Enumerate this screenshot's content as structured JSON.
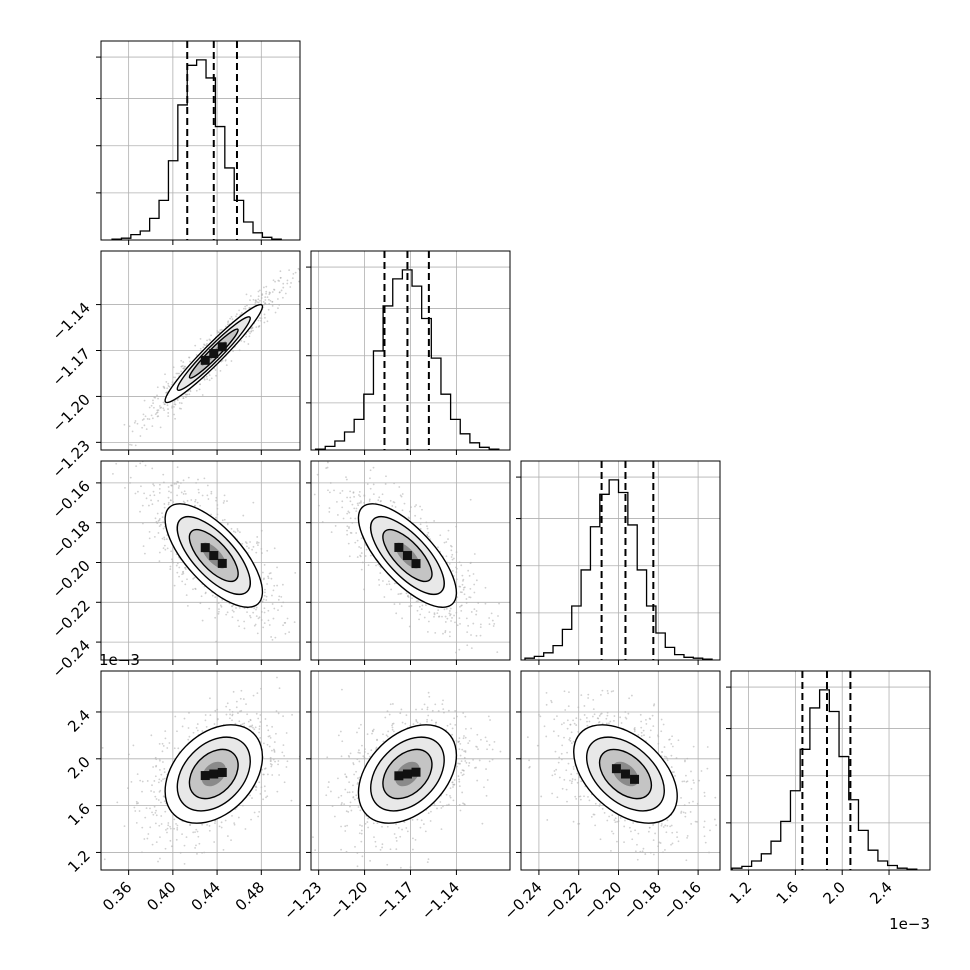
{
  "chart_data": {
    "type": "corner",
    "parameters": 4,
    "offset_labels": {
      "row4_y": "1e−3",
      "col4_x": "1e−3"
    },
    "axes": [
      {
        "range": [
          0.335,
          0.515
        ],
        "ticks": [
          0.36,
          0.4,
          0.44,
          0.48
        ],
        "tick_labels": [
          "0.36",
          "0.40",
          "0.44",
          "0.48"
        ],
        "quantiles": [
          0.413,
          0.437,
          0.458
        ]
      },
      {
        "range": [
          -1.235,
          -1.105
        ],
        "ticks": [
          -1.23,
          -1.2,
          -1.17,
          -1.14
        ],
        "tick_labels": [
          "−1.23",
          "−1.20",
          "−1.17",
          "−1.14"
        ],
        "quantiles": [
          -1.187,
          -1.172,
          -1.158
        ]
      },
      {
        "range": [
          -0.249,
          -0.149
        ],
        "ticks": [
          -0.24,
          -0.22,
          -0.2,
          -0.18,
          -0.16
        ],
        "tick_labels": [
          "−0.24",
          "−0.22",
          "−0.20",
          "−0.18",
          "−0.16"
        ],
        "quantiles": [
          -0.2085,
          -0.1965,
          -0.1825
        ]
      },
      {
        "range": [
          1.05,
          2.75
        ],
        "ticks": [
          1.2,
          1.6,
          2.0,
          2.4
        ],
        "tick_labels": [
          "1.2",
          "1.6",
          "2.0",
          "2.4"
        ],
        "quantiles": [
          1.66,
          1.87,
          2.07
        ]
      }
    ],
    "histograms": [
      {
        "param": 0,
        "bins_lo": 0.345,
        "bin_width": 0.0085,
        "counts": [
          0.005,
          0.01,
          0.03,
          0.05,
          0.12,
          0.22,
          0.44,
          0.75,
          0.97,
          1.0,
          0.9,
          0.63,
          0.4,
          0.22,
          0.1,
          0.04,
          0.015,
          0.005
        ]
      },
      {
        "param": 1,
        "bins_lo": -1.232,
        "bin_width": 0.0063,
        "counts": [
          0.005,
          0.02,
          0.05,
          0.1,
          0.17,
          0.31,
          0.55,
          0.8,
          0.95,
          1.0,
          0.91,
          0.73,
          0.51,
          0.31,
          0.17,
          0.09,
          0.04,
          0.015,
          0.005
        ]
      },
      {
        "param": 2,
        "bins_lo": -0.247,
        "bin_width": 0.0047,
        "counts": [
          0.01,
          0.02,
          0.04,
          0.08,
          0.17,
          0.3,
          0.5,
          0.74,
          0.92,
          1.0,
          0.93,
          0.75,
          0.5,
          0.3,
          0.15,
          0.07,
          0.03,
          0.015,
          0.01,
          0.005
        ]
      },
      {
        "param": 3,
        "bins_lo": 1.06,
        "bin_width": 0.083,
        "counts": [
          0.01,
          0.02,
          0.05,
          0.09,
          0.16,
          0.27,
          0.44,
          0.67,
          0.9,
          1.0,
          0.88,
          0.63,
          0.39,
          0.22,
          0.11,
          0.05,
          0.025,
          0.01,
          0.005
        ]
      }
    ],
    "joint_2d": [
      {
        "x_param": 0,
        "y_param": 1,
        "mean": [
          0.437,
          -1.172
        ],
        "sd": [
          0.022,
          0.016
        ],
        "corr": 0.96
      },
      {
        "x_param": 0,
        "y_param": 2,
        "mean": [
          0.437,
          -0.1965
        ],
        "sd": [
          0.022,
          0.013
        ],
        "corr": -0.7
      },
      {
        "x_param": 1,
        "y_param": 2,
        "mean": [
          -1.172,
          -0.1965
        ],
        "sd": [
          0.016,
          0.013
        ],
        "corr": -0.72
      },
      {
        "x_param": 0,
        "y_param": 3,
        "mean": [
          0.437,
          1.87
        ],
        "sd": [
          0.022,
          0.21
        ],
        "corr": 0.35
      },
      {
        "x_param": 1,
        "y_param": 3,
        "mean": [
          -1.172,
          1.87
        ],
        "sd": [
          0.016,
          0.21
        ],
        "corr": 0.38
      },
      {
        "x_param": 2,
        "y_param": 3,
        "mean": [
          -0.1965,
          1.87
        ],
        "sd": [
          0.013,
          0.21
        ],
        "corr": -0.45
      }
    ],
    "contour_levels_sigma": [
      0.5,
      1.0,
      1.5,
      2.0
    ],
    "colors": {
      "hist_line": "#000000",
      "contour": "#000000",
      "points": "#b0b0b0",
      "grid": "#b0b0b0",
      "frame": "#000000"
    },
    "grid": true
  }
}
